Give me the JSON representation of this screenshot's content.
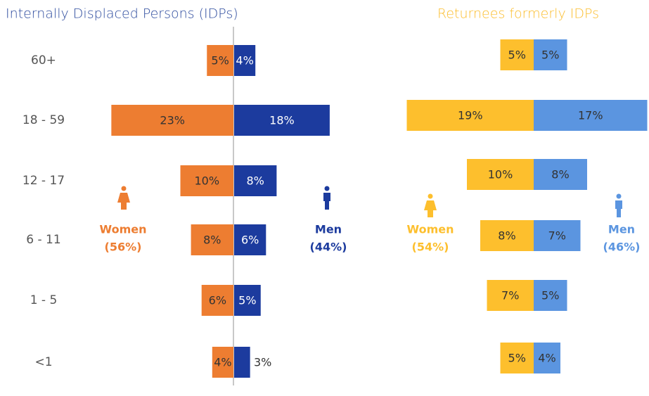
{
  "chart_data": [
    {
      "type": "pyramid",
      "title": "Internally Displaced Persons (IDPs)",
      "title_color": "#2f4d9f",
      "categories": [
        "60+",
        "18 - 59",
        "12 - 17",
        "6 - 11",
        "1 - 5",
        "<1"
      ],
      "series": [
        {
          "name": "Women",
          "share_label": "(56%)",
          "color": "#ed7d31",
          "label_color": "#333333",
          "values": [
            5,
            23,
            10,
            8,
            6,
            4
          ],
          "value_labels": [
            "5%",
            "23%",
            "10%",
            "8%",
            "6%",
            "4%"
          ]
        },
        {
          "name": "Men",
          "share_label": "(44%)",
          "color": "#1c3b9e",
          "label_color": "#ffffff",
          "values": [
            4,
            18,
            8,
            6,
            5,
            3
          ],
          "value_labels": [
            "4%",
            "18%",
            "8%",
            "6%",
            "5%",
            "3%"
          ]
        }
      ]
    },
    {
      "type": "pyramid",
      "title": "Returnees formerly IDPs",
      "title_color": "#fbbd2c",
      "categories": [
        null,
        null,
        null,
        null,
        null,
        null
      ],
      "series": [
        {
          "name": "Women",
          "share_label": "(54%)",
          "color": "#fdbf2d",
          "label_color": "#333333",
          "values": [
            5,
            19,
            10,
            8,
            7,
            5
          ],
          "value_labels": [
            "5%",
            "19%",
            "10%",
            "8%",
            "7%",
            "5%"
          ]
        },
        {
          "name": "Men",
          "share_label": "(46%)",
          "color": "#5b95e0",
          "label_color": "#333333",
          "values": [
            5,
            17,
            8,
            7,
            5,
            4
          ],
          "value_labels": [
            "5%",
            "17%",
            "8%",
            "7%",
            "5%",
            "4%"
          ]
        }
      ]
    }
  ]
}
